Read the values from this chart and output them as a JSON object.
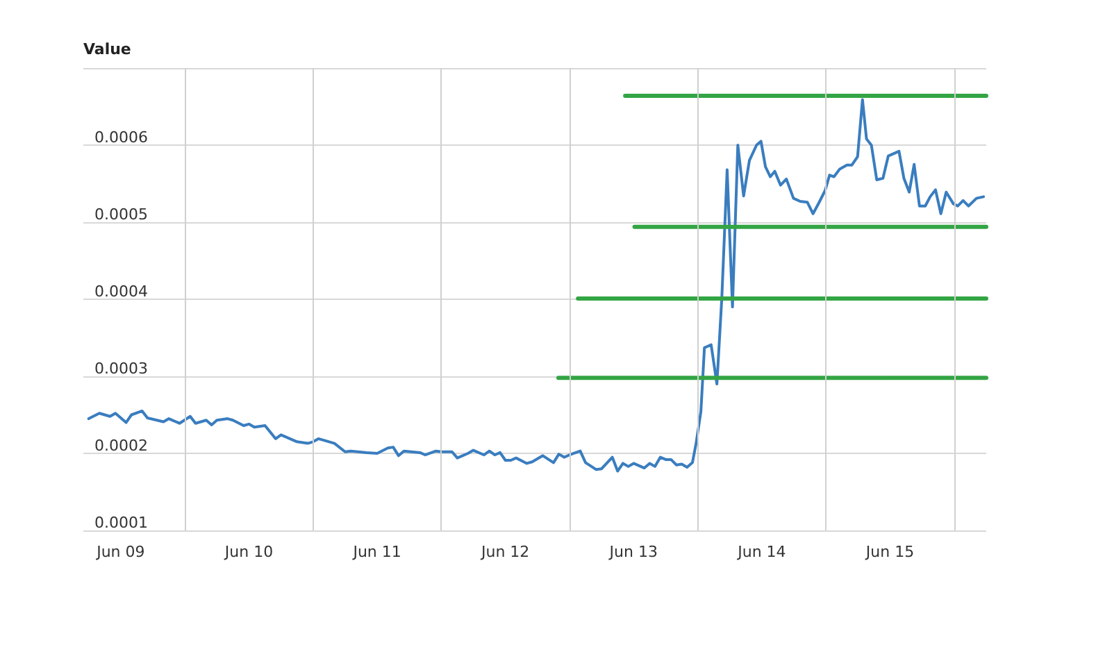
{
  "chart_data": {
    "type": "line",
    "ylabel": "Value",
    "marker": "none",
    "grid": true,
    "xlim": [
      "--06-09T05:00",
      "--06-16T06:00"
    ],
    "xticks": [
      {
        "value": "--06-09T12:00",
        "label": "Jun 09"
      },
      {
        "value": "--06-10T00:00",
        "label": null
      },
      {
        "value": "--06-10T12:00",
        "label": "Jun 10"
      },
      {
        "value": "--06-11T00:00",
        "label": null
      },
      {
        "value": "--06-11T12:00",
        "label": "Jun 11"
      },
      {
        "value": "--06-12T00:00",
        "label": null
      },
      {
        "value": "--06-12T12:00",
        "label": "Jun 12"
      },
      {
        "value": "--06-13T00:00",
        "label": null
      },
      {
        "value": "--06-13T12:00",
        "label": "Jun 13"
      },
      {
        "value": "--06-14T00:00",
        "label": null
      },
      {
        "value": "--06-14T12:00",
        "label": "Jun 14"
      },
      {
        "value": "--06-15T00:00",
        "label": null
      },
      {
        "value": "--06-15T12:00",
        "label": "Jun 15"
      },
      {
        "value": "--06-16T00:00",
        "label": null
      }
    ],
    "ylim": [
      0.0001,
      0.0007
    ],
    "yticks": [
      0.0001,
      0.0002,
      0.0003,
      0.0004,
      0.0005,
      0.0006
    ],
    "series": [
      {
        "color": "#3a7dbf",
        "x": [
          "--06-09T06:00",
          "--06-09T08:00",
          "--06-09T10:00",
          "--06-09T11:00",
          "--06-09T13:00",
          "--06-09T14:00",
          "--06-09T16:00",
          "--06-09T17:00",
          "--06-09T20:00",
          "--06-09T21:00",
          "--06-09T23:00",
          "--06-10T01:00",
          "--06-10T02:00",
          "--06-10T04:00",
          "--06-10T05:00",
          "--06-10T06:00",
          "--06-10T08:00",
          "--06-10T09:00",
          "--06-10T11:00",
          "--06-10T12:00",
          "--06-10T13:00",
          "--06-10T15:00",
          "--06-10T17:00",
          "--06-10T18:00",
          "--06-10T21:00",
          "--06-10T23:00",
          "--06-11T00:00",
          "--06-11T01:00",
          "--06-11T04:00",
          "--06-11T06:00",
          "--06-11T07:00",
          "--06-11T10:00",
          "--06-11T12:00",
          "--06-11T14:00",
          "--06-11T15:00",
          "--06-11T16:00",
          "--06-11T17:00",
          "--06-11T20:00",
          "--06-11T21:00",
          "--06-11T23:00",
          "--06-12T00:00",
          "--06-12T02:00",
          "--06-12T03:00",
          "--06-12T05:00",
          "--06-12T06:00",
          "--06-12T08:00",
          "--06-12T09:00",
          "--06-12T10:00",
          "--06-12T11:00",
          "--06-12T12:00",
          "--06-12T13:00",
          "--06-12T14:00",
          "--06-12T16:00",
          "--06-12T17:00",
          "--06-12T19:00",
          "--06-12T21:00",
          "--06-12T22:00",
          "--06-12T23:00",
          "--06-13T00:00",
          "--06-13T02:00",
          "--06-13T03:00",
          "--06-13T05:00",
          "--06-13T06:00",
          "--06-13T08:00",
          "--06-13T09:00",
          "--06-13T10:00",
          "--06-13T11:00",
          "--06-13T12:00",
          "--06-13T14:00",
          "--06-13T15:00",
          "--06-13T16:00",
          "--06-13T17:00",
          "--06-13T18:00",
          "--06-13T19:00",
          "--06-13T20:00",
          "--06-13T21:00",
          "--06-13T22:00",
          "--06-13T23:00",
          "--06-13T23:40",
          "--06-14T00:35",
          "--06-14T01:15",
          "--06-14T02:30",
          "--06-14T03:35",
          "--06-14T04:30",
          "--06-14T05:30",
          "--06-14T06:30",
          "--06-14T07:30",
          "--06-14T08:35",
          "--06-14T09:40",
          "--06-14T11:00",
          "--06-14T11:50",
          "--06-14T12:40",
          "--06-14T13:35",
          "--06-14T14:25",
          "--06-14T15:30",
          "--06-14T16:35",
          "--06-14T17:55",
          "--06-14T19:10",
          "--06-14T20:30",
          "--06-14T21:35",
          "--06-14T22:40",
          "--06-14T23:50",
          "--06-15T00:40",
          "--06-15T01:30",
          "--06-15T02:35",
          "--06-15T03:55",
          "--06-15T04:50",
          "--06-15T05:55",
          "--06-15T06:50",
          "--06-15T07:35",
          "--06-15T08:30",
          "--06-15T09:30",
          "--06-15T10:40",
          "--06-15T11:40",
          "--06-15T13:40",
          "--06-15T14:35",
          "--06-15T15:35",
          "--06-15T16:30",
          "--06-15T17:30",
          "--06-15T18:35",
          "--06-15T19:30",
          "--06-15T20:30",
          "--06-15T21:30",
          "--06-15T22:30",
          "--06-15T23:50",
          "--06-16T00:40",
          "--06-16T01:40",
          "--06-16T02:40",
          "--06-16T04:10",
          "--06-16T05:30"
        ],
        "values": [
          0.000245,
          0.000252,
          0.000248,
          0.000252,
          0.00024,
          0.00025,
          0.000255,
          0.000246,
          0.000241,
          0.000245,
          0.000239,
          0.000248,
          0.000239,
          0.000243,
          0.000237,
          0.000243,
          0.000245,
          0.000243,
          0.000236,
          0.000238,
          0.000234,
          0.000236,
          0.000219,
          0.000224,
          0.000215,
          0.000213,
          0.000215,
          0.000219,
          0.000213,
          0.000202,
          0.000203,
          0.000201,
          0.0002,
          0.000207,
          0.000208,
          0.000197,
          0.000203,
          0.000201,
          0.000198,
          0.000203,
          0.000202,
          0.000202,
          0.000194,
          0.0002,
          0.000204,
          0.000198,
          0.000203,
          0.000198,
          0.000201,
          0.000191,
          0.000191,
          0.000194,
          0.000187,
          0.000189,
          0.000197,
          0.000188,
          0.000199,
          0.000195,
          0.000198,
          0.000203,
          0.000188,
          0.000179,
          0.00018,
          0.000195,
          0.000177,
          0.000187,
          0.000183,
          0.000187,
          0.000181,
          0.000187,
          0.000183,
          0.000195,
          0.000192,
          0.000192,
          0.000185,
          0.000186,
          0.000182,
          0.000188,
          0.000212,
          0.000254,
          0.000337,
          0.000341,
          0.00029,
          0.000401,
          0.000568,
          0.00039,
          0.0006,
          0.000534,
          0.00058,
          0.0006,
          0.000605,
          0.000572,
          0.000559,
          0.000566,
          0.000548,
          0.000556,
          0.000531,
          0.000527,
          0.000526,
          0.000511,
          0.000525,
          0.000541,
          0.000561,
          0.000559,
          0.000569,
          0.000574,
          0.000574,
          0.000585,
          0.000659,
          0.000608,
          0.0006,
          0.000555,
          0.000557,
          0.000586,
          0.000592,
          0.000557,
          0.000539,
          0.000575,
          0.000521,
          0.000521,
          0.000533,
          0.000542,
          0.000511,
          0.000539,
          0.000524,
          0.000521,
          0.000528,
          0.000521,
          0.000531,
          0.000533
        ]
      },
      {
        "color": "#33a544",
        "x": [
          "--06-13T10:25",
          "--06-16T06:00"
        ],
        "values": [
          0.000664,
          0.000664
        ]
      },
      {
        "color": "#33a544",
        "x": [
          "--06-13T12:10",
          "--06-16T06:00"
        ],
        "values": [
          0.000494,
          0.000494
        ]
      },
      {
        "color": "#33a544",
        "x": [
          "--06-13T01:35",
          "--06-16T06:00"
        ],
        "values": [
          0.000401,
          0.000401
        ]
      },
      {
        "color": "#33a544",
        "x": [
          "--06-12T21:55",
          "--06-16T06:00"
        ],
        "values": [
          0.000298,
          0.000298
        ]
      }
    ]
  }
}
